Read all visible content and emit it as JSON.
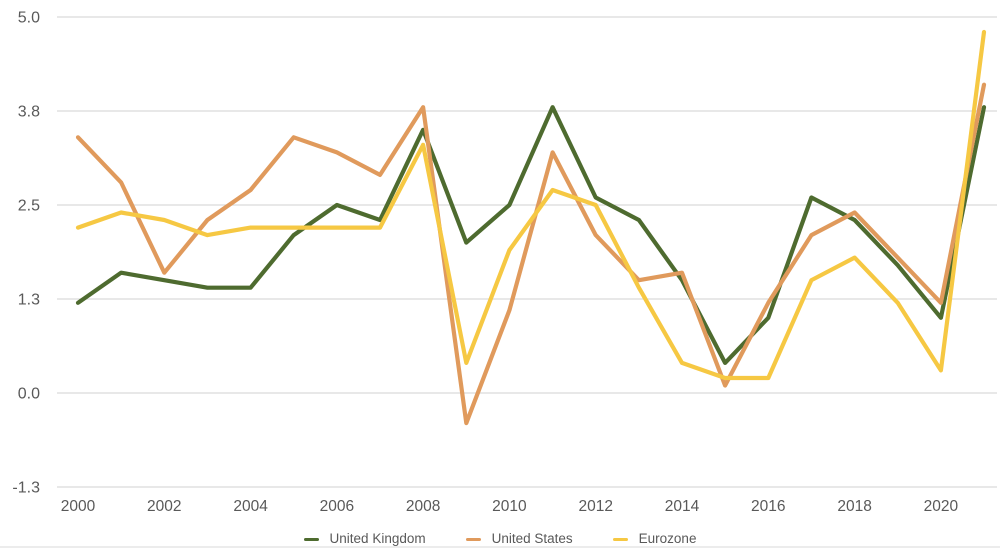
{
  "chart_data": {
    "type": "line",
    "x": [
      2000,
      2001,
      2002,
      2003,
      2004,
      2005,
      2006,
      2007,
      2008,
      2009,
      2010,
      2011,
      2012,
      2013,
      2014,
      2015,
      2016,
      2017,
      2018,
      2019,
      2020,
      2021
    ],
    "series": [
      {
        "name": "United Kingdom",
        "color": "#4e6b2f",
        "values": [
          1.2,
          1.6,
          1.5,
          1.4,
          1.4,
          2.1,
          2.5,
          2.3,
          3.5,
          2.0,
          2.5,
          3.8,
          2.6,
          2.3,
          1.5,
          0.4,
          1.0,
          2.6,
          2.3,
          1.7,
          1.0,
          3.8
        ]
      },
      {
        "name": "United States",
        "color": "#e09a5c",
        "values": [
          3.4,
          2.8,
          1.6,
          2.3,
          2.7,
          3.4,
          3.2,
          2.9,
          3.8,
          -0.4,
          1.1,
          3.2,
          2.1,
          1.5,
          1.6,
          0.1,
          1.2,
          2.1,
          2.4,
          1.8,
          1.2,
          4.1
        ]
      },
      {
        "name": "Eurozone",
        "color": "#f6c843",
        "values": [
          2.2,
          2.4,
          2.3,
          2.1,
          2.2,
          2.2,
          2.2,
          2.2,
          3.3,
          0.4,
          1.9,
          2.7,
          2.5,
          1.4,
          0.4,
          0.2,
          0.2,
          1.5,
          1.8,
          1.2,
          0.3,
          4.8
        ]
      }
    ],
    "y_axis": {
      "ticks": [
        {
          "value": 5.0,
          "label": "5.0"
        },
        {
          "value": 3.75,
          "label": "3.8"
        },
        {
          "value": 2.5,
          "label": "2.5"
        },
        {
          "value": 1.25,
          "label": "1.3"
        },
        {
          "value": 0.0,
          "label": "0.0"
        },
        {
          "value": -1.25,
          "label": "-1.3"
        }
      ],
      "ylim": [
        -1.25,
        5.0
      ],
      "grid": true
    },
    "x_axis": {
      "tick_labels": [
        "2000",
        "2002",
        "2004",
        "2006",
        "2008",
        "2010",
        "2012",
        "2014",
        "2016",
        "2018",
        "2020"
      ],
      "tick_years": [
        2000,
        2002,
        2004,
        2006,
        2008,
        2010,
        2012,
        2014,
        2016,
        2018,
        2020
      ]
    },
    "legend": {
      "position": "bottom"
    }
  },
  "colors": {
    "background": "#ffffff",
    "gridline": "#d9d9d9",
    "tick_text": "#595959",
    "legend_text": "#595959"
  }
}
